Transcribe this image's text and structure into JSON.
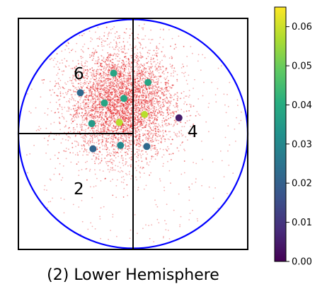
{
  "caption": "(2) Lower Hemisphere",
  "quadrant_labels": [
    "6",
    "4",
    "2"
  ],
  "colors": {
    "circle": "#0000ff",
    "scatter": "#e31a1c",
    "frame": "#000000"
  },
  "chart_data": {
    "type": "scatter",
    "title": "(2) Lower Hemisphere",
    "projection": "lower hemisphere",
    "xlim": [
      -1,
      1
    ],
    "ylim": [
      -1,
      1
    ],
    "grid": false,
    "legend": "none",
    "cloud": {
      "color": "#e31a1c",
      "center": [
        -0.1,
        0.26
      ],
      "spread": [
        0.23,
        0.24
      ]
    },
    "points": [
      {
        "x": -0.17,
        "y": 0.53,
        "value": 0.038
      },
      {
        "x": 0.13,
        "y": 0.45,
        "value": 0.038
      },
      {
        "x": -0.46,
        "y": 0.36,
        "value": 0.022
      },
      {
        "x": -0.25,
        "y": 0.27,
        "value": 0.038
      },
      {
        "x": -0.08,
        "y": 0.31,
        "value": 0.038
      },
      {
        "x": 0.1,
        "y": 0.17,
        "value": 0.058
      },
      {
        "x": 0.4,
        "y": 0.14,
        "value": 0.005
      },
      {
        "x": -0.36,
        "y": 0.09,
        "value": 0.035
      },
      {
        "x": -0.12,
        "y": 0.1,
        "value": 0.058
      },
      {
        "x": -0.11,
        "y": -0.1,
        "value": 0.03
      },
      {
        "x": 0.12,
        "y": -0.11,
        "value": 0.022
      },
      {
        "x": -0.35,
        "y": -0.13,
        "value": 0.021
      }
    ],
    "colorbar": {
      "colormap": "viridis",
      "min": 0.0,
      "max": 0.065,
      "ticks": [
        "0.00",
        "0.01",
        "0.02",
        "0.03",
        "0.04",
        "0.05",
        "0.06"
      ]
    }
  }
}
